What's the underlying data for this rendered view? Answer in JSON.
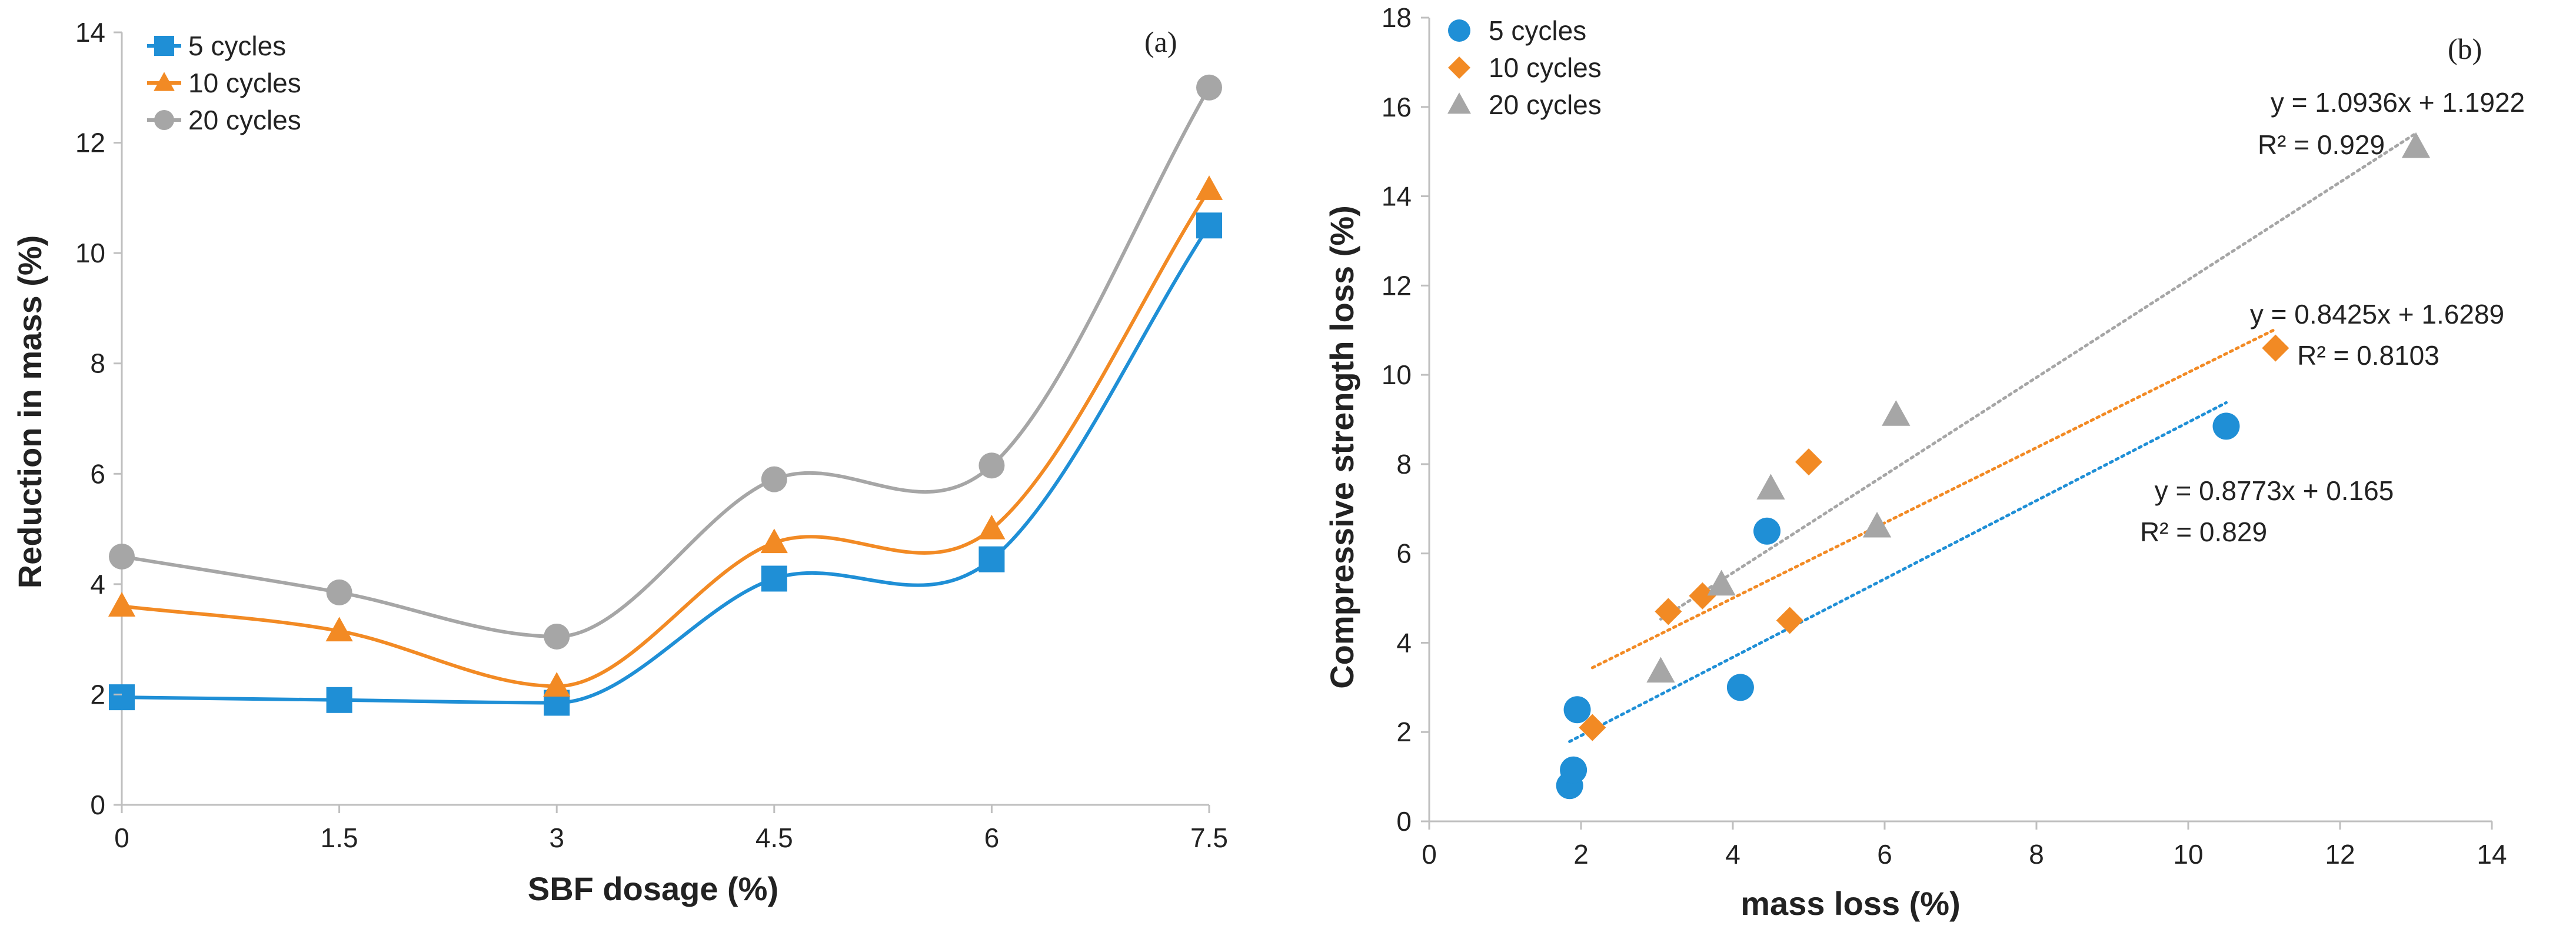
{
  "colors": {
    "c5": "#1f8fd6",
    "c10": "#f28a24",
    "c20": "#a6a6a6",
    "axis": "#bfbfbf"
  },
  "chart_data": [
    {
      "type": "line",
      "panel_label": "(a)",
      "xlabel": "SBF dosage (%)",
      "ylabel": "Reduction in mass (%)",
      "categories": [
        "0",
        "1.5",
        "3",
        "4.5",
        "6",
        "7.5"
      ],
      "ylim": [
        0,
        14
      ],
      "yticks": [
        0,
        2,
        4,
        6,
        8,
        10,
        12,
        14
      ],
      "series": [
        {
          "name": "5 cycles",
          "marker": "square",
          "color": "#1f8fd6",
          "values": [
            1.95,
            1.9,
            1.85,
            4.1,
            4.45,
            10.5
          ]
        },
        {
          "name": "10 cycles",
          "marker": "triangle",
          "color": "#f28a24",
          "values": [
            3.6,
            3.15,
            2.15,
            4.75,
            5.0,
            11.15
          ]
        },
        {
          "name": "20 cycles",
          "marker": "circle",
          "color": "#a6a6a6",
          "values": [
            4.5,
            3.85,
            3.05,
            5.9,
            6.15,
            13.0
          ]
        }
      ]
    },
    {
      "type": "scatter",
      "panel_label": "(b)",
      "xlabel": "mass loss (%)",
      "ylabel": "Compressive strength loss (%)",
      "xlim": [
        0,
        14
      ],
      "ylim": [
        0,
        18
      ],
      "xticks": [
        0,
        2,
        4,
        6,
        8,
        10,
        12,
        14
      ],
      "yticks": [
        0,
        2,
        4,
        6,
        8,
        10,
        12,
        14,
        16,
        18
      ],
      "series": [
        {
          "name": "5 cycles",
          "marker": "circle",
          "color": "#1f8fd6",
          "points": [
            [
              1.85,
              0.8
            ],
            [
              1.9,
              1.15
            ],
            [
              1.95,
              2.5
            ],
            [
              4.1,
              3.0
            ],
            [
              4.45,
              6.5
            ],
            [
              10.5,
              8.85
            ]
          ],
          "trendline": {
            "slope": 0.8773,
            "intercept": 0.165,
            "x_range": [
              1.85,
              10.5
            ]
          },
          "equation": "y = 0.8773x + 0.165",
          "r2": "R² = 0.829"
        },
        {
          "name": "10 cycles",
          "marker": "diamond",
          "color": "#f28a24",
          "points": [
            [
              2.15,
              2.1
            ],
            [
              3.15,
              4.7
            ],
            [
              3.6,
              5.05
            ],
            [
              4.75,
              4.5
            ],
            [
              5.0,
              8.05
            ],
            [
              11.15,
              10.6
            ]
          ],
          "trendline": {
            "slope": 0.8425,
            "intercept": 1.6289,
            "x_range": [
              2.15,
              11.15
            ]
          },
          "equation": "y = 0.8425x + 1.6289",
          "r2": "R² = 0.8103"
        },
        {
          "name": "20 cycles",
          "marker": "triangle",
          "color": "#a6a6a6",
          "points": [
            [
              3.05,
              3.35
            ],
            [
              3.85,
              5.3
            ],
            [
              4.5,
              7.45
            ],
            [
              5.9,
              6.6
            ],
            [
              6.15,
              9.1
            ],
            [
              13.0,
              15.1
            ]
          ],
          "trendline": {
            "slope": 1.0936,
            "intercept": 1.1922,
            "x_range": [
              3.05,
              13.0
            ]
          },
          "equation": "y = 1.0936x + 1.1922",
          "r2": "R² = 0.929"
        }
      ]
    }
  ]
}
